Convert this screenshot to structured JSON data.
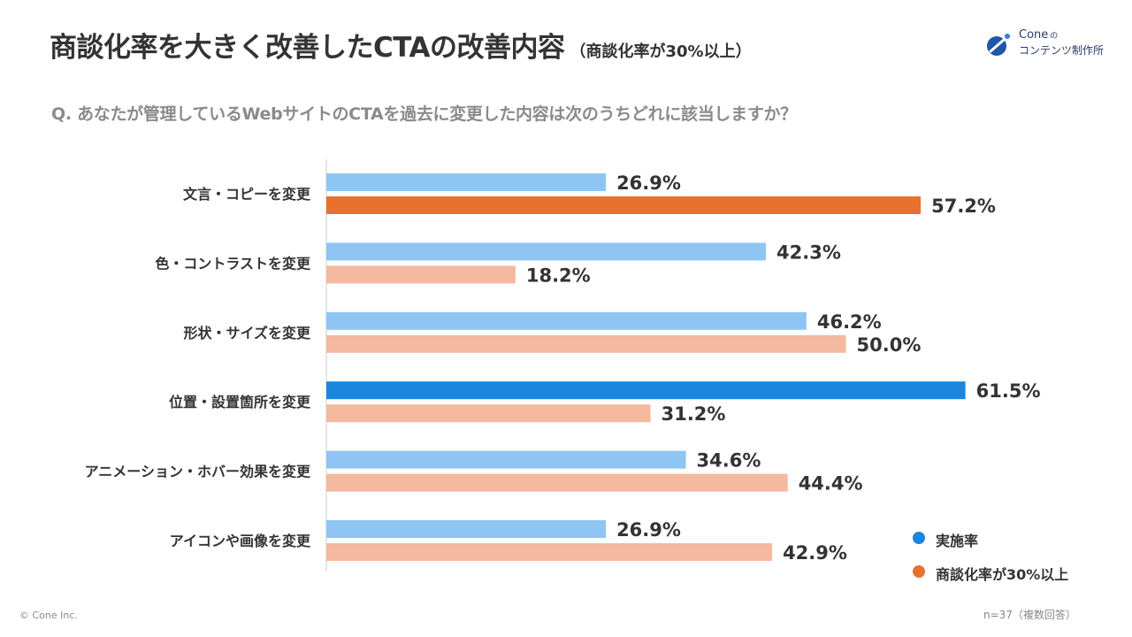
{
  "header": {
    "title": "商談化率を大きく改善したCTAの改善内容",
    "subtitle": "（商談化率が30%以上）",
    "question": "Q. あなたが管理しているWebサイトのCTAを過去に変更した内容は次のうちどれに該当しますか？"
  },
  "logo": {
    "brand": "Cone",
    "brand_suffix": "の",
    "tagline": "コンテンツ制作所"
  },
  "footer": {
    "copyright": "© Cone Inc.",
    "note": "n=37（複数回答）"
  },
  "colors": {
    "series1_light": "#8ec5f2",
    "series1_dark": "#1a86dd",
    "series2_light": "#f4b99e",
    "series2_dark": "#e8712f",
    "axis": "#cccccc",
    "label": "#333333"
  },
  "chart_data": {
    "type": "bar",
    "orientation": "horizontal",
    "title": "商談化率を大きく改善したCTAの改善内容",
    "categories": [
      "文言・コピーを変更",
      "色・コントラストを変更",
      "形状・サイズを変更",
      "位置・設置箇所を変更",
      "アニメーション・ホバー効果を変更",
      "アイコンや画像を変更"
    ],
    "series": [
      {
        "name": "実施率",
        "values": [
          26.9,
          42.3,
          46.2,
          61.5,
          34.6,
          26.9
        ],
        "labels": [
          "26.9%",
          "42.3%",
          "46.2%",
          "61.5%",
          "34.6%",
          "26.9%"
        ],
        "highlight_index": 3
      },
      {
        "name": "商談化率が30%以上",
        "values": [
          57.2,
          18.2,
          50.0,
          31.2,
          44.4,
          42.9
        ],
        "labels": [
          "57.2%",
          "18.2%",
          "50.0%",
          "31.2%",
          "44.4%",
          "42.9%"
        ],
        "highlight_index": 0
      }
    ],
    "xlim": [
      0,
      70
    ],
    "legend": "bottom-right"
  }
}
